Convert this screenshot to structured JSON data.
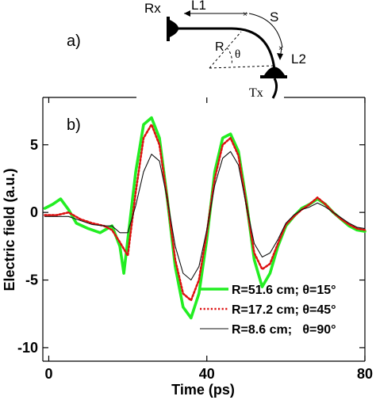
{
  "panel_a": {
    "label": "a)",
    "rx": "Rx",
    "tx": "Tx",
    "l1": "L1",
    "l2": "L2",
    "s": "S",
    "r": "R",
    "theta": "θ"
  },
  "chart_data": {
    "type": "line",
    "panel_label": "b)",
    "xlabel": "Time (ps)",
    "ylabel": "Electric field (a.u.)",
    "xlim": [
      -1.5,
      80
    ],
    "ylim": [
      -11,
      8.5
    ],
    "xticks": [
      0,
      40,
      80
    ],
    "yticks": [
      5,
      0,
      -5,
      -10
    ],
    "grid": false,
    "legend_position": "bottom-right",
    "series": [
      {
        "name": "R=51.6 cm; θ=15°",
        "color": "#22ee22",
        "style": "solid-thick",
        "x": [
          -1,
          1,
          3,
          5,
          7,
          10,
          13,
          16,
          18,
          19,
          20,
          22,
          24,
          26,
          28,
          30,
          32,
          34,
          36,
          38,
          40,
          42,
          44,
          46,
          48,
          50,
          52,
          54,
          56,
          58,
          60,
          62,
          64,
          66,
          68,
          70,
          72,
          74,
          76,
          78,
          80
        ],
        "y": [
          0.3,
          0.6,
          1.0,
          0.2,
          -0.8,
          -1.2,
          -1.5,
          -1.0,
          -2.5,
          -4.5,
          -2.0,
          3.0,
          6.5,
          7.0,
          5.5,
          1.0,
          -4.0,
          -7.0,
          -7.8,
          -6.0,
          -2.0,
          3.0,
          5.5,
          5.8,
          4.5,
          0.8,
          -3.5,
          -5.5,
          -4.5,
          -2.5,
          -1.0,
          -0.3,
          0.3,
          0.6,
          1.0,
          0.6,
          0.0,
          -0.5,
          -1.0,
          -1.3,
          -1.4
        ]
      },
      {
        "name": "R=17.2 cm; θ=45°",
        "color": "#dd1111",
        "style": "dotted",
        "x": [
          -1,
          2,
          5,
          8,
          11,
          14,
          16,
          18,
          20,
          22,
          24,
          26,
          28,
          30,
          32,
          34,
          36,
          38,
          40,
          42,
          44,
          46,
          48,
          50,
          52,
          54,
          56,
          58,
          60,
          62,
          64,
          66,
          68,
          70,
          72,
          74,
          76,
          78,
          80
        ],
        "y": [
          -0.2,
          -0.2,
          0.0,
          -0.5,
          -0.8,
          -1.0,
          -1.3,
          -2.2,
          -3.2,
          1.5,
          5.5,
          6.5,
          5.0,
          1.0,
          -3.5,
          -6.0,
          -6.5,
          -5.0,
          -1.5,
          2.5,
          5.0,
          5.5,
          4.2,
          0.6,
          -3.0,
          -4.2,
          -3.8,
          -2.3,
          -0.9,
          -0.3,
          0.2,
          0.6,
          1.1,
          0.6,
          0.0,
          -0.5,
          -0.9,
          -1.2,
          -1.3
        ]
      },
      {
        "name": "R=8.6 cm;   θ=90°",
        "color": "#111111",
        "style": "solid-thin",
        "x": [
          -1,
          2,
          5,
          8,
          11,
          14,
          16,
          18,
          20,
          22,
          24,
          26,
          28,
          30,
          32,
          34,
          36,
          38,
          40,
          42,
          44,
          46,
          48,
          50,
          52,
          54,
          56,
          58,
          60,
          62,
          64,
          66,
          68,
          70,
          72,
          74,
          76,
          78,
          80
        ],
        "y": [
          -0.3,
          -0.3,
          -0.3,
          -0.6,
          -0.9,
          -1.0,
          -1.0,
          -1.5,
          -1.5,
          0.5,
          3.0,
          4.3,
          3.8,
          1.0,
          -2.5,
          -4.5,
          -5.0,
          -4.0,
          -1.3,
          2.0,
          4.0,
          4.5,
          3.5,
          0.5,
          -2.3,
          -3.3,
          -3.0,
          -2.0,
          -0.8,
          -0.2,
          0.2,
          0.4,
          0.7,
          0.4,
          0.0,
          -0.4,
          -0.8,
          -1.1,
          -1.2
        ]
      }
    ]
  }
}
